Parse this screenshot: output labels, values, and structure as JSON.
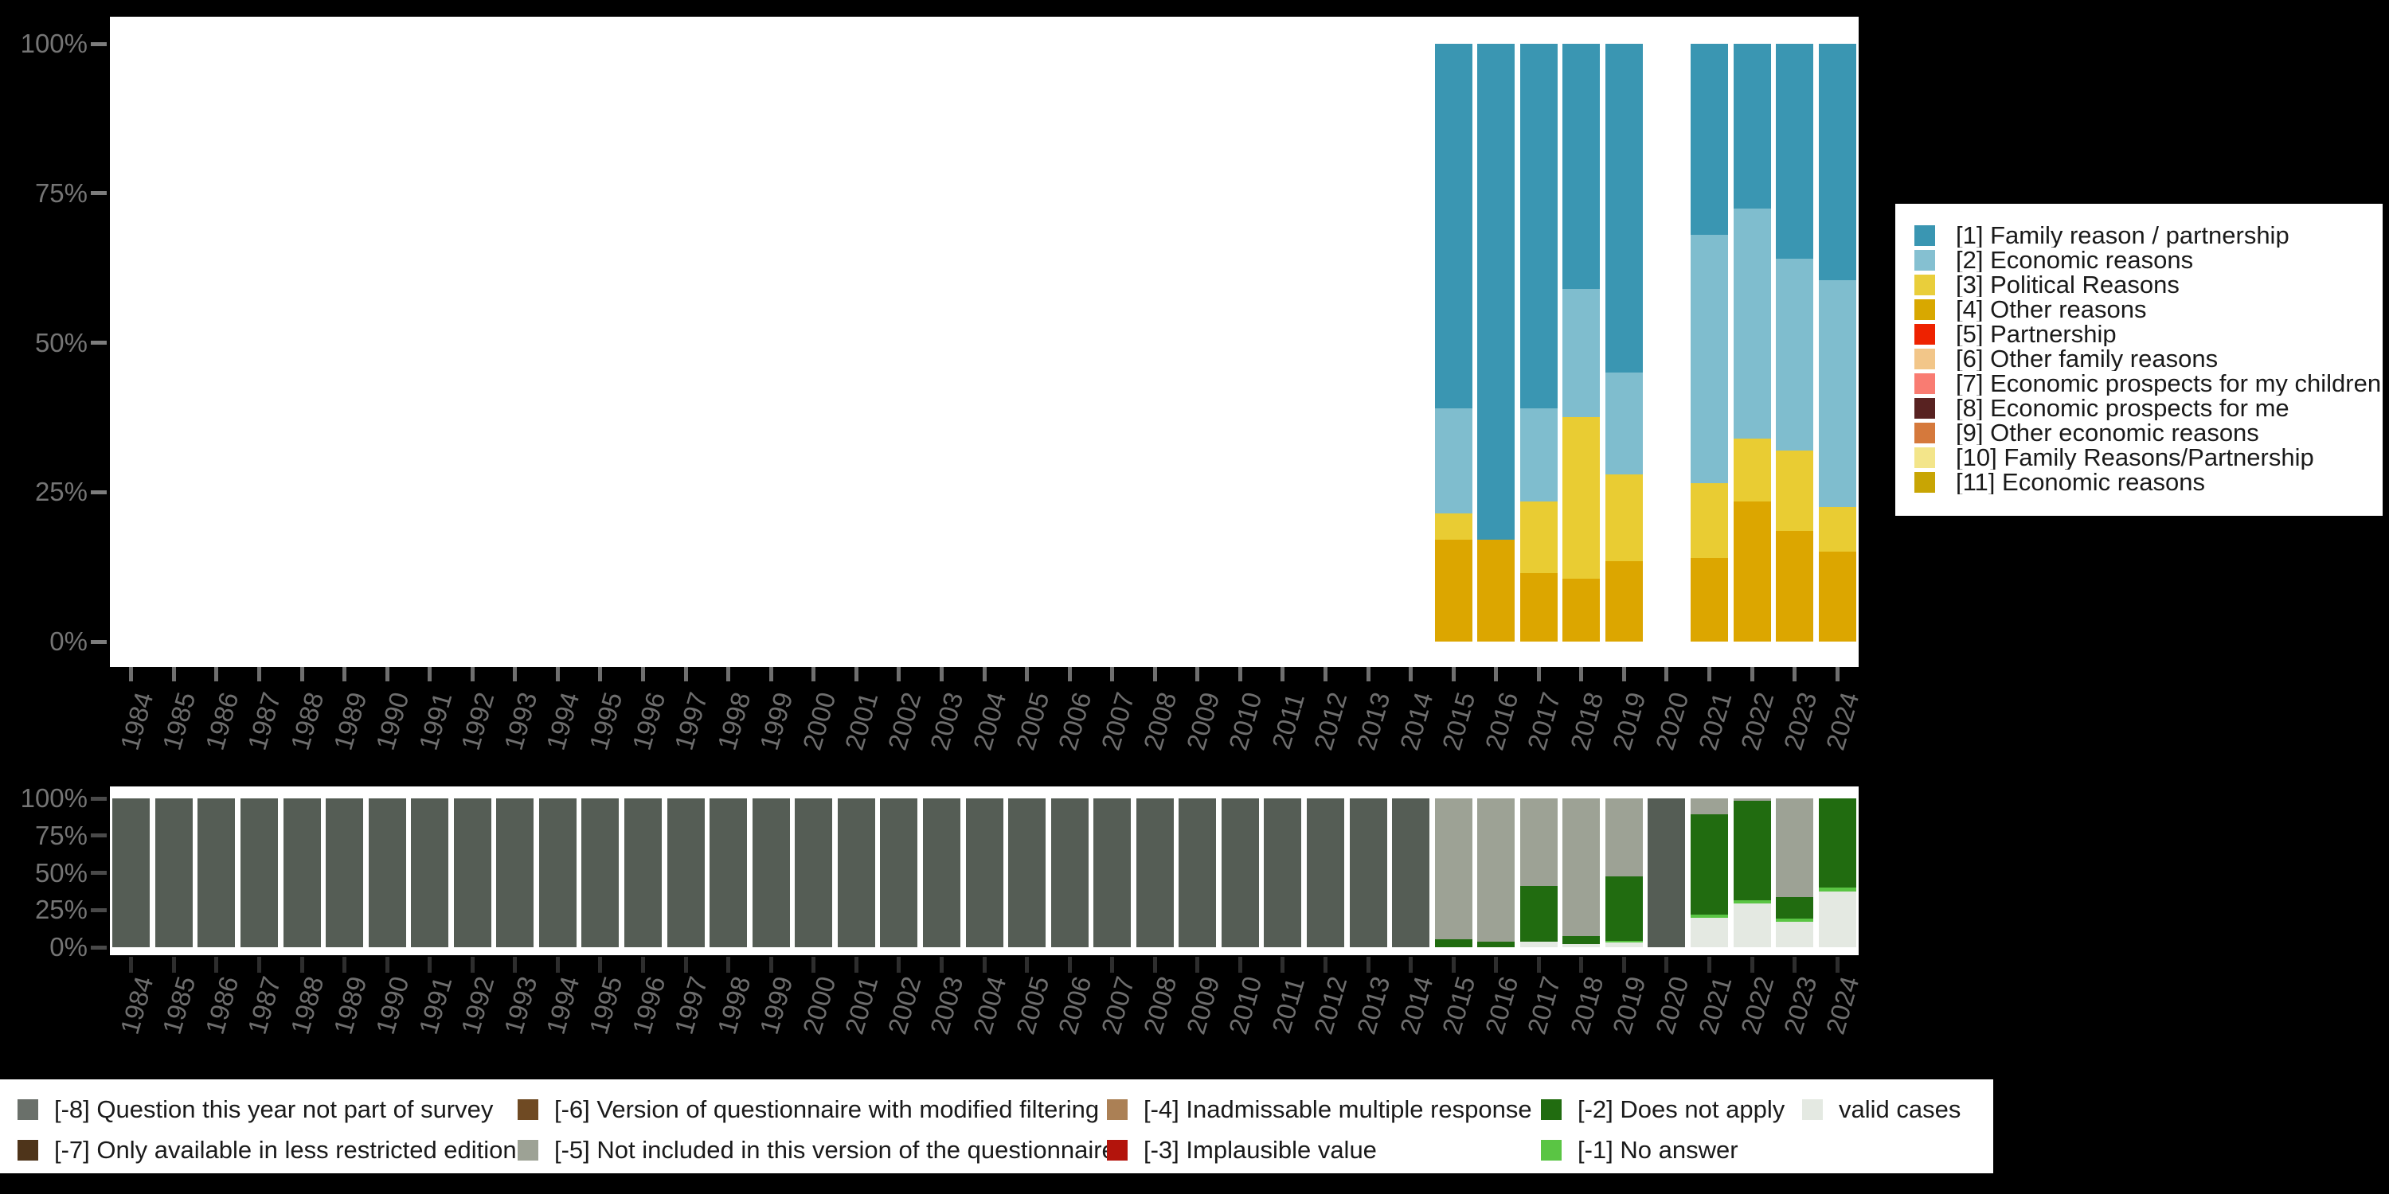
{
  "page": {
    "background": "#000000",
    "plot_background": "#ffffff",
    "axis_label_color": "#757575",
    "year_label_color": "#6e6e6e",
    "top_tick_color": "#6f6f6f",
    "bottom_tick_color": "#2e2e2e",
    "legend_text_color": "#1a1a1a"
  },
  "axes": {
    "y_tick_labels": [
      "100%",
      "75%",
      "50%",
      "25%",
      "0%"
    ],
    "years": [
      1984,
      1985,
      1986,
      1987,
      1988,
      1989,
      1990,
      1991,
      1992,
      1993,
      1994,
      1995,
      1996,
      1997,
      1998,
      1999,
      2000,
      2001,
      2002,
      2003,
      2004,
      2005,
      2006,
      2007,
      2008,
      2009,
      2010,
      2011,
      2012,
      2013,
      2014,
      2015,
      2016,
      2017,
      2018,
      2019,
      2020,
      2021,
      2022,
      2023,
      2024
    ]
  },
  "chart_data": [
    {
      "type": "bar",
      "stacked": true,
      "title": "",
      "xlabel": "",
      "ylabel": "",
      "ylim": [
        0,
        100
      ],
      "y_tick_labels": [
        "0%",
        "25%",
        "50%",
        "75%",
        "100%"
      ],
      "grid": false,
      "legend_position": "right",
      "categories": [
        1984,
        1985,
        1986,
        1987,
        1988,
        1989,
        1990,
        1991,
        1992,
        1993,
        1994,
        1995,
        1996,
        1997,
        1998,
        1999,
        2000,
        2001,
        2002,
        2003,
        2004,
        2005,
        2006,
        2007,
        2008,
        2009,
        2010,
        2011,
        2012,
        2013,
        2014,
        2015,
        2016,
        2017,
        2018,
        2019,
        2020,
        2021,
        2022,
        2023,
        2024
      ],
      "series": [
        {
          "name": "[4] Other reasons",
          "color": "#dca600",
          "values": [
            0,
            0,
            0,
            0,
            0,
            0,
            0,
            0,
            0,
            0,
            0,
            0,
            0,
            0,
            0,
            0,
            0,
            0,
            0,
            0,
            0,
            0,
            0,
            0,
            0,
            0,
            0,
            0,
            0,
            0,
            0,
            17,
            17,
            11.5,
            10.5,
            13.5,
            0,
            14,
            23.5,
            18.5,
            15
          ]
        },
        {
          "name": "[3] Political Reasons",
          "color": "#e9cc33",
          "values": [
            0,
            0,
            0,
            0,
            0,
            0,
            0,
            0,
            0,
            0,
            0,
            0,
            0,
            0,
            0,
            0,
            0,
            0,
            0,
            0,
            0,
            0,
            0,
            0,
            0,
            0,
            0,
            0,
            0,
            0,
            0,
            4.5,
            0,
            12,
            27,
            14.5,
            0,
            12.5,
            10.5,
            13.5,
            7.5
          ]
        },
        {
          "name": "[2] Economic reasons",
          "color": "#7fbdce",
          "values": [
            0,
            0,
            0,
            0,
            0,
            0,
            0,
            0,
            0,
            0,
            0,
            0,
            0,
            0,
            0,
            0,
            0,
            0,
            0,
            0,
            0,
            0,
            0,
            0,
            0,
            0,
            0,
            0,
            0,
            0,
            0,
            17.5,
            0,
            15.5,
            21.5,
            17,
            0,
            41.5,
            38.5,
            32,
            38
          ]
        },
        {
          "name": "[1] Family reason / partnership",
          "color": "#3a96b2",
          "values": [
            0,
            0,
            0,
            0,
            0,
            0,
            0,
            0,
            0,
            0,
            0,
            0,
            0,
            0,
            0,
            0,
            0,
            0,
            0,
            0,
            0,
            0,
            0,
            0,
            0,
            0,
            0,
            0,
            0,
            0,
            0,
            61,
            83,
            61,
            41,
            55,
            0,
            32,
            27.5,
            36,
            39.5
          ]
        }
      ]
    },
    {
      "type": "bar",
      "stacked": true,
      "title": "",
      "xlabel": "",
      "ylabel": "",
      "ylim": [
        0,
        100
      ],
      "y_tick_labels": [
        "0%",
        "25%",
        "50%",
        "75%",
        "100%"
      ],
      "grid": false,
      "legend_position": "bottom",
      "categories": [
        1984,
        1985,
        1986,
        1987,
        1988,
        1989,
        1990,
        1991,
        1992,
        1993,
        1994,
        1995,
        1996,
        1997,
        1998,
        1999,
        2000,
        2001,
        2002,
        2003,
        2004,
        2005,
        2006,
        2007,
        2008,
        2009,
        2010,
        2011,
        2012,
        2013,
        2014,
        2015,
        2016,
        2017,
        2018,
        2019,
        2020,
        2021,
        2022,
        2023,
        2024
      ],
      "series": [
        {
          "name": "valid cases",
          "color": "#e4e9e2",
          "values": [
            0,
            0,
            0,
            0,
            0,
            0,
            0,
            0,
            0,
            0,
            0,
            0,
            0,
            0,
            0,
            0,
            0,
            0,
            0,
            0,
            0,
            0,
            0,
            0,
            0,
            0,
            0,
            0,
            0,
            0,
            0,
            0,
            0,
            4,
            2,
            3,
            0,
            20,
            29.5,
            17,
            37.5
          ]
        },
        {
          "name": "[-1] No answer",
          "color": "#5ac544",
          "values": [
            0,
            0,
            0,
            0,
            0,
            0,
            0,
            0,
            0,
            0,
            0,
            0,
            0,
            0,
            0,
            0,
            0,
            0,
            0,
            0,
            0,
            0,
            0,
            0,
            0,
            0,
            0,
            0,
            0,
            0,
            0,
            0,
            0,
            0,
            0,
            1.5,
            0,
            2,
            2,
            2,
            2.5
          ]
        },
        {
          "name": "[-2] Does not apply",
          "color": "#216c10",
          "values": [
            0,
            0,
            0,
            0,
            0,
            0,
            0,
            0,
            0,
            0,
            0,
            0,
            0,
            0,
            0,
            0,
            0,
            0,
            0,
            0,
            0,
            0,
            0,
            0,
            0,
            0,
            0,
            0,
            0,
            0,
            0,
            5.5,
            4,
            37,
            5.5,
            43,
            0,
            67.5,
            67,
            14.5,
            60
          ]
        },
        {
          "name": "[-5] Not included in this version of the questionnaire",
          "color": "#9da295",
          "values": [
            0,
            0,
            0,
            0,
            0,
            0,
            0,
            0,
            0,
            0,
            0,
            0,
            0,
            0,
            0,
            0,
            0,
            0,
            0,
            0,
            0,
            0,
            0,
            0,
            0,
            0,
            0,
            0,
            0,
            0,
            0,
            94.5,
            96,
            59,
            92.5,
            52.5,
            0,
            10.5,
            1.5,
            66.5,
            0
          ]
        },
        {
          "name": "[-8] Question this year not part of survey",
          "color": "#555d55",
          "values": [
            100,
            100,
            100,
            100,
            100,
            100,
            100,
            100,
            100,
            100,
            100,
            100,
            100,
            100,
            100,
            100,
            100,
            100,
            100,
            100,
            100,
            100,
            100,
            100,
            100,
            100,
            100,
            100,
            100,
            100,
            100,
            0,
            0,
            0,
            0,
            0,
            100,
            0,
            0,
            0,
            0
          ]
        }
      ]
    }
  ],
  "legend_top": {
    "entries": [
      {
        "label": "[1] Family reason / partnership",
        "color": "#3a96b2"
      },
      {
        "label": "[2] Economic reasons",
        "color": "#85c0d1"
      },
      {
        "label": "[3] Political Reasons",
        "color": "#e9ce3b"
      },
      {
        "label": "[4] Other reasons",
        "color": "#d8a800"
      },
      {
        "label": "[5] Partnership",
        "color": "#ee2200"
      },
      {
        "label": "[6] Other family reasons",
        "color": "#f2c689"
      },
      {
        "label": "[7] Economic prospects for my children",
        "color": "#f97c72"
      },
      {
        "label": "[8] Economic prospects for me",
        "color": "#582221"
      },
      {
        "label": "[9] Other economic reasons",
        "color": "#d5793c"
      },
      {
        "label": "[10] Family Reasons/Partnership",
        "color": "#f3e58a"
      },
      {
        "label": "[11] Economic reasons",
        "color": "#c8a504"
      }
    ]
  },
  "legend_bottom": {
    "entries": [
      {
        "label": "[-8] Question this year not part of survey",
        "color": "#6a706a"
      },
      {
        "label": "[-7] Only available in less restricted edition",
        "color": "#4e341a"
      },
      {
        "label": "[-6] Version of questionnaire with modified filtering",
        "color": "#6f4a23"
      },
      {
        "label": "[-5] Not included in this version of the questionnaire",
        "color": "#9da295"
      },
      {
        "label": "[-4] Inadmissable multiple response",
        "color": "#ab8055"
      },
      {
        "label": "[-3] Implausible value",
        "color": "#b3140c"
      },
      {
        "label": "[-2] Does not apply",
        "color": "#216c10"
      },
      {
        "label": "[-1] No answer",
        "color": "#5ac544"
      },
      {
        "label": "valid cases",
        "color": "#e4e9e2"
      }
    ]
  }
}
